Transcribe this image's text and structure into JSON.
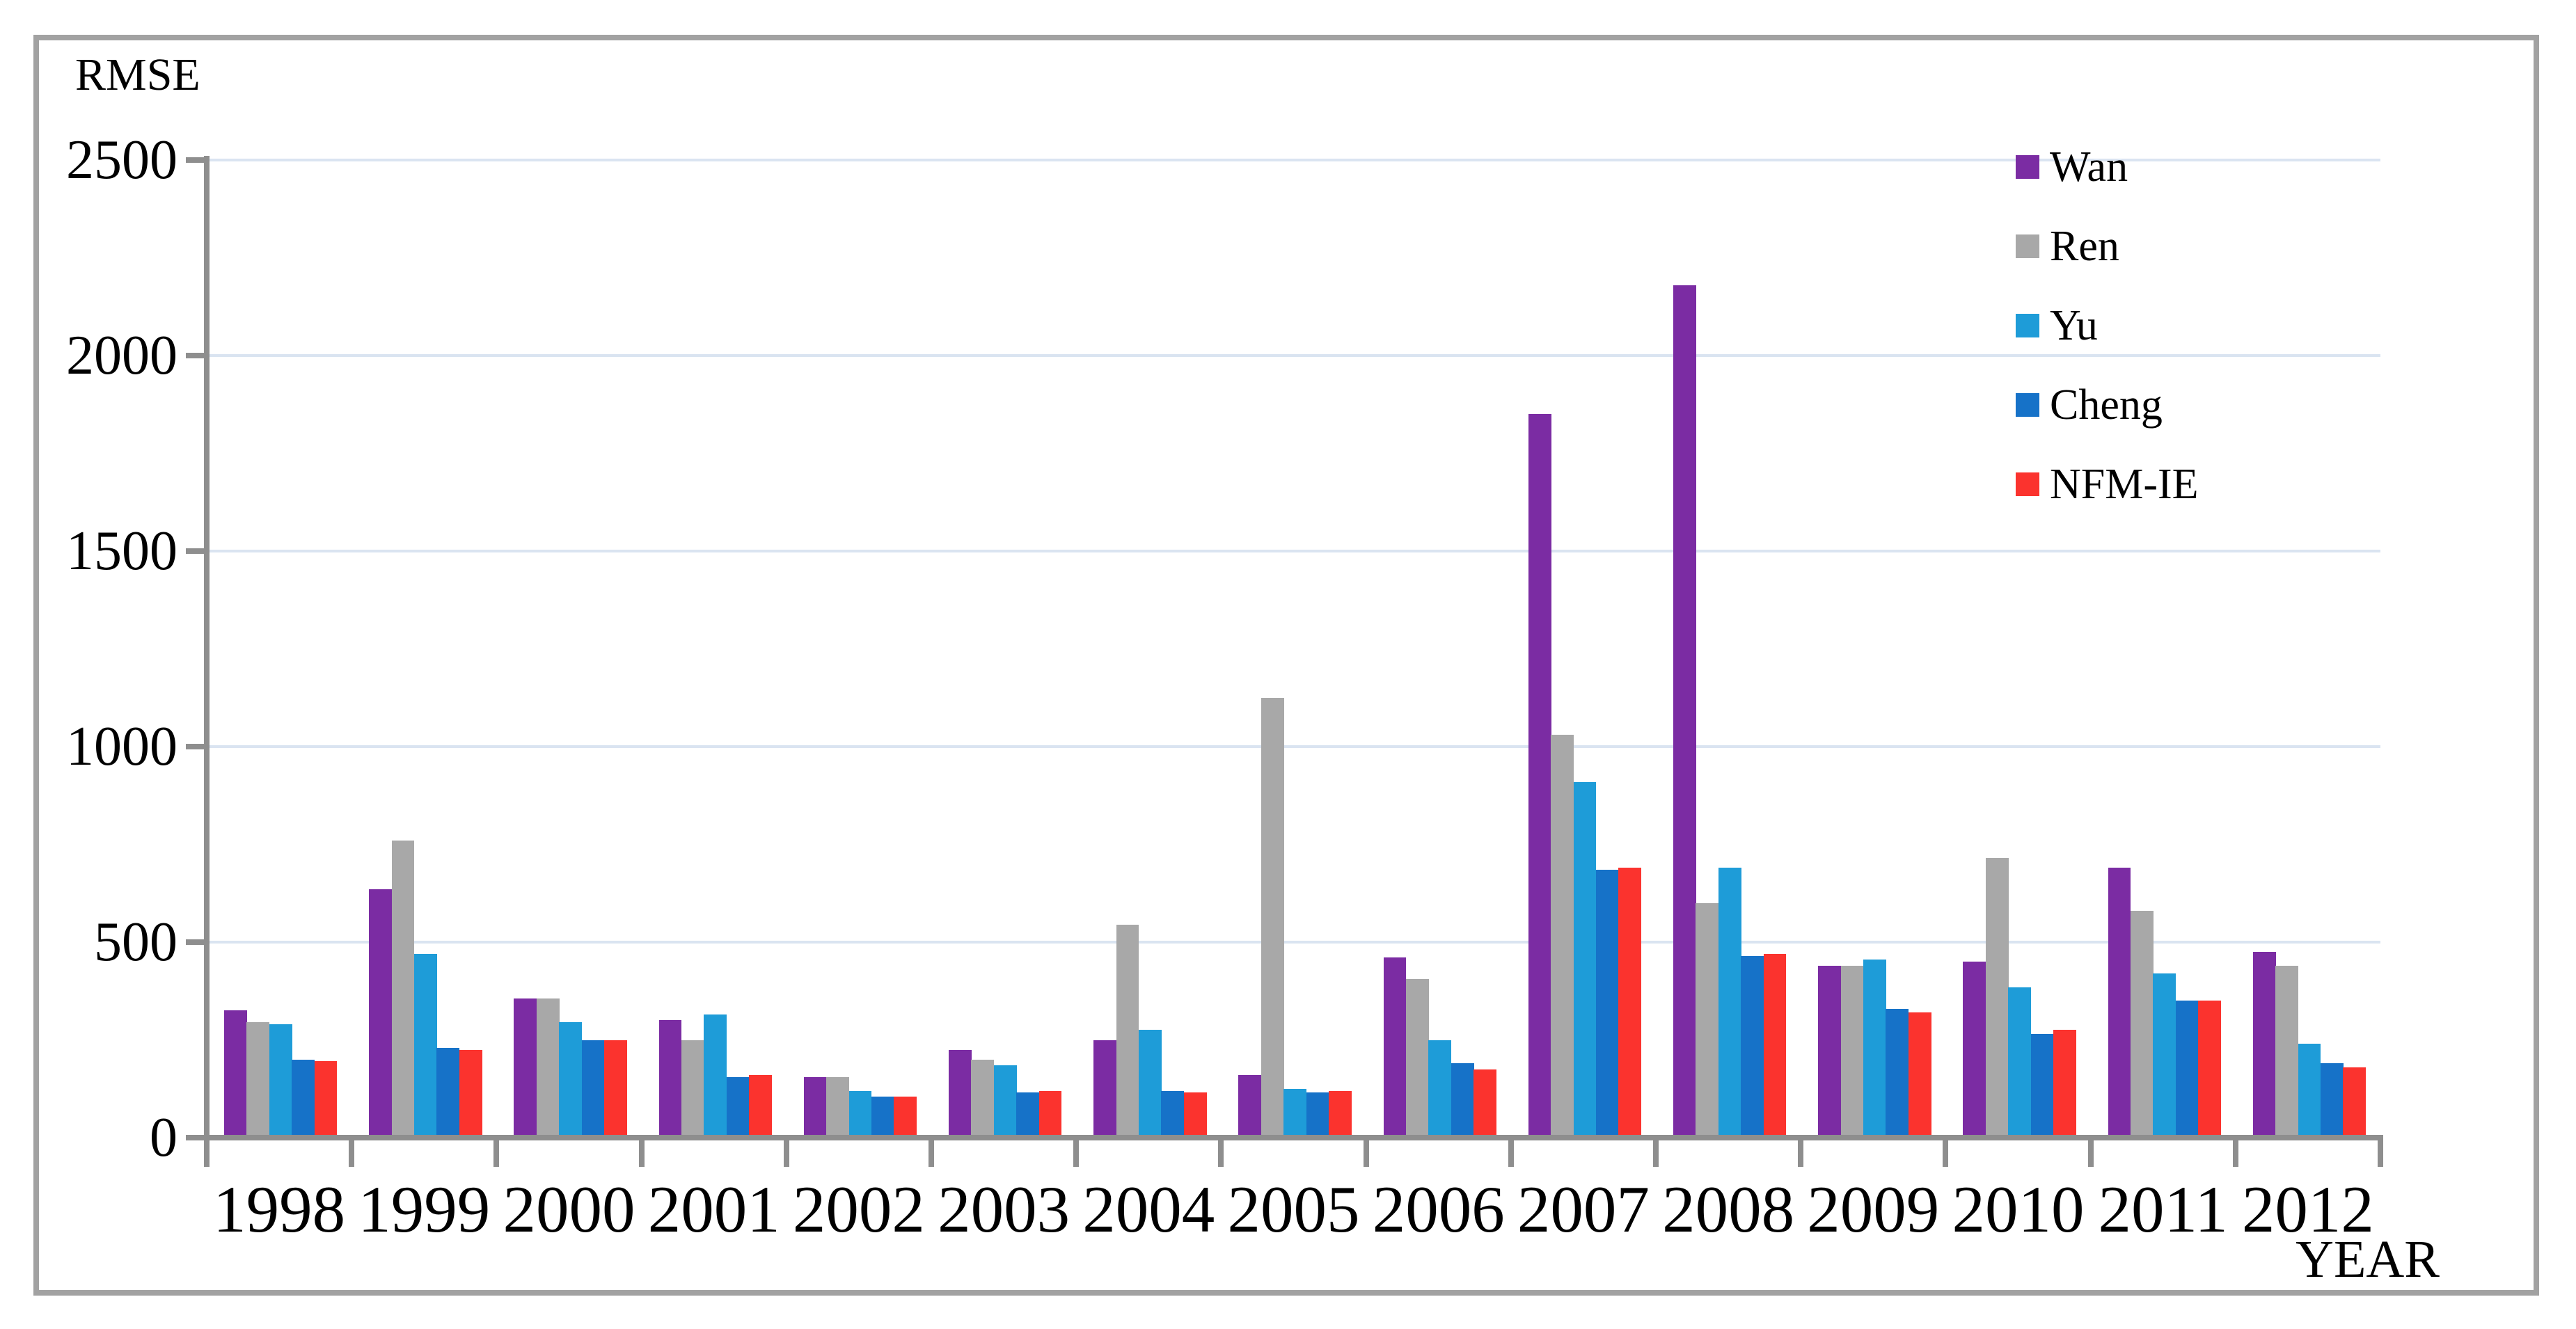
{
  "figure": {
    "y_axis_title": "RMSE",
    "x_axis_title": "YEAR"
  },
  "axes": {
    "y_ticks": [
      0,
      500,
      1000,
      1500,
      2000,
      2500
    ],
    "y_max": 2500,
    "gridline_color": "#dae4f1",
    "axis_color": "#8e8e8e"
  },
  "legend": {
    "position": "top-right",
    "entries": [
      {
        "label": "Wan",
        "color": "#7b2ca3"
      },
      {
        "label": "Ren",
        "color": "#a8a8a8"
      },
      {
        "label": "Yu",
        "color": "#1e9cd8"
      },
      {
        "label": "Cheng",
        "color": "#1672c8"
      },
      {
        "label": "NFM-IE",
        "color": "#fb332e"
      }
    ]
  },
  "chart_data": {
    "type": "bar",
    "title": "",
    "xlabel": "YEAR",
    "ylabel": "RMSE",
    "ylim": [
      0,
      2500
    ],
    "ytick_interval": 500,
    "grid": true,
    "legend_position": "top-right",
    "categories": [
      "1998",
      "1999",
      "2000",
      "2001",
      "2002",
      "2003",
      "2004",
      "2005",
      "2006",
      "2007",
      "2008",
      "2009",
      "2010",
      "2011",
      "2012"
    ],
    "series": [
      {
        "name": "Wan",
        "color": "#7b2ca3",
        "values": [
          325,
          635,
          355,
          300,
          155,
          225,
          250,
          160,
          460,
          1850,
          2180,
          440,
          450,
          690,
          475
        ]
      },
      {
        "name": "Ren",
        "color": "#a8a8a8",
        "values": [
          295,
          760,
          355,
          250,
          155,
          200,
          545,
          1125,
          405,
          1030,
          600,
          440,
          715,
          580,
          440
        ]
      },
      {
        "name": "Yu",
        "color": "#1e9cd8",
        "values": [
          290,
          470,
          295,
          315,
          120,
          185,
          275,
          125,
          250,
          910,
          690,
          455,
          385,
          420,
          240
        ]
      },
      {
        "name": "Cheng",
        "color": "#1672c8",
        "values": [
          200,
          230,
          250,
          155,
          105,
          115,
          120,
          115,
          190,
          685,
          465,
          330,
          265,
          350,
          190
        ]
      },
      {
        "name": "NFM-IE",
        "color": "#fb332e",
        "values": [
          195,
          225,
          250,
          160,
          105,
          120,
          115,
          120,
          175,
          690,
          470,
          320,
          275,
          350,
          180
        ]
      }
    ]
  }
}
